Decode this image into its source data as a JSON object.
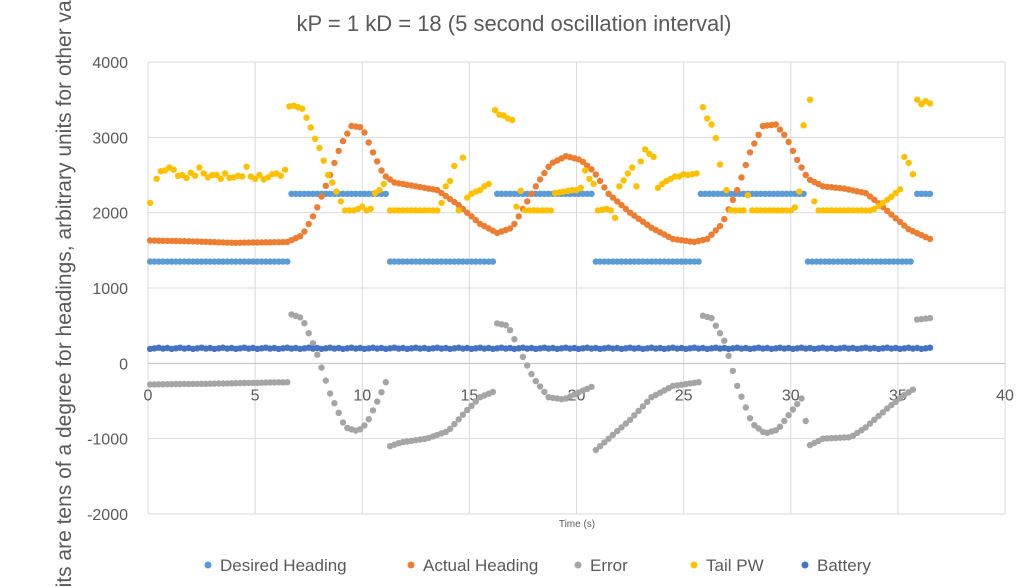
{
  "chart_data": {
    "type": "scatter",
    "title": "kP = 1 kD = 18 (5 second oscillation interval)",
    "xlabel": "Time (s)",
    "ylabel": "Units are tens of  a degree for headings, arbitrary units for other values",
    "xlim": [
      0,
      40
    ],
    "ylim": [
      -2000,
      4000
    ],
    "xticks": [
      0,
      5,
      10,
      15,
      20,
      25,
      30,
      35,
      40
    ],
    "yticks": [
      -2000,
      -1000,
      0,
      1000,
      2000,
      3000,
      4000
    ],
    "grid": true,
    "legend_position": "bottom",
    "x_step": 0.2,
    "x_start": 0.1,
    "series": [
      {
        "name": "Desired Heading",
        "color": "#5b9bd5",
        "segments": [
          {
            "x0": 0.1,
            "x1": 6.5,
            "y0": 1350,
            "y1": 1350
          },
          {
            "x0": 6.7,
            "x1": 11.2,
            "y0": 2250,
            "y1": 2250
          },
          {
            "x0": 11.3,
            "x1": 16.1,
            "y0": 1350,
            "y1": 1350
          },
          {
            "x0": 16.3,
            "x1": 20.8,
            "y0": 2250,
            "y1": 2250
          },
          {
            "x0": 20.9,
            "x1": 25.7,
            "y0": 1350,
            "y1": 1350
          },
          {
            "x0": 25.8,
            "x1": 30.6,
            "y0": 2250,
            "y1": 2250
          },
          {
            "x0": 30.8,
            "x1": 35.7,
            "y0": 1350,
            "y1": 1350
          },
          {
            "x0": 35.9,
            "x1": 36.5,
            "y0": 2250,
            "y1": 2250
          }
        ]
      },
      {
        "name": "Actual Heading",
        "color": "#ed7d31",
        "keypoints": [
          [
            0.1,
            1630
          ],
          [
            2,
            1620
          ],
          [
            4,
            1600
          ],
          [
            6.5,
            1610
          ],
          [
            7.2,
            1700
          ],
          [
            7.8,
            2000
          ],
          [
            8.5,
            2500
          ],
          [
            9,
            2900
          ],
          [
            9.5,
            3150
          ],
          [
            10,
            3130
          ],
          [
            10.5,
            2800
          ],
          [
            11,
            2500
          ],
          [
            11.5,
            2400
          ],
          [
            12.5,
            2350
          ],
          [
            13.5,
            2300
          ],
          [
            14.5,
            2100
          ],
          [
            15.5,
            1850
          ],
          [
            16.3,
            1730
          ],
          [
            17,
            1800
          ],
          [
            17.5,
            2050
          ],
          [
            18.2,
            2400
          ],
          [
            18.8,
            2650
          ],
          [
            19.5,
            2750
          ],
          [
            20.2,
            2700
          ],
          [
            20.8,
            2550
          ],
          [
            21.5,
            2250
          ],
          [
            22.5,
            2000
          ],
          [
            23.5,
            1800
          ],
          [
            24.5,
            1650
          ],
          [
            25.5,
            1610
          ],
          [
            26.1,
            1650
          ],
          [
            26.8,
            1850
          ],
          [
            27.5,
            2300
          ],
          [
            28.1,
            2800
          ],
          [
            28.7,
            3150
          ],
          [
            29.3,
            3170
          ],
          [
            29.8,
            3000
          ],
          [
            30.3,
            2700
          ],
          [
            30.8,
            2450
          ],
          [
            31.5,
            2350
          ],
          [
            32.5,
            2320
          ],
          [
            33.5,
            2260
          ],
          [
            34,
            2150
          ],
          [
            34.8,
            1950
          ],
          [
            35.5,
            1780
          ],
          [
            36.5,
            1650
          ]
        ]
      },
      {
        "name": "Error",
        "color": "#a5a5a5",
        "keypoints": [
          [
            0.1,
            -280
          ],
          [
            3,
            -270
          ],
          [
            6.5,
            -250
          ],
          [
            6.7,
            650
          ],
          [
            7.2,
            600
          ],
          [
            7.8,
            200
          ],
          [
            8.5,
            -400
          ],
          [
            9.2,
            -850
          ],
          [
            9.8,
            -900
          ],
          [
            10.2,
            -800
          ],
          [
            10.8,
            -450
          ],
          [
            11.1,
            -250
          ],
          [
            11.3,
            -1100
          ],
          [
            11.8,
            -1050
          ],
          [
            13,
            -1000
          ],
          [
            14,
            -900
          ],
          [
            14.8,
            -650
          ],
          [
            15.5,
            -450
          ],
          [
            16.1,
            -380
          ],
          [
            16.3,
            530
          ],
          [
            16.8,
            500
          ],
          [
            17.3,
            200
          ],
          [
            18,
            -200
          ],
          [
            18.7,
            -450
          ],
          [
            19.4,
            -480
          ],
          [
            20,
            -400
          ],
          [
            20.8,
            -300
          ],
          [
            20.9,
            -1150
          ],
          [
            21.5,
            -1000
          ],
          [
            22.5,
            -750
          ],
          [
            23.5,
            -450
          ],
          [
            24.5,
            -300
          ],
          [
            25.7,
            -250
          ],
          [
            25.8,
            640
          ],
          [
            26.3,
            600
          ],
          [
            26.9,
            300
          ],
          [
            27.5,
            -300
          ],
          [
            28.2,
            -800
          ],
          [
            28.8,
            -930
          ],
          [
            29.4,
            -880
          ],
          [
            30,
            -650
          ],
          [
            30.6,
            -430
          ],
          [
            30.8,
            -1100
          ],
          [
            31.5,
            -1000
          ],
          [
            32.8,
            -980
          ],
          [
            33.5,
            -850
          ],
          [
            34.5,
            -600
          ],
          [
            35.3,
            -420
          ],
          [
            35.7,
            -350
          ],
          [
            35.9,
            580
          ],
          [
            36.5,
            600
          ]
        ]
      },
      {
        "name": "Tail PW",
        "color": "#ffc000",
        "points": [
          [
            0.1,
            2130
          ],
          [
            0.4,
            2450
          ],
          [
            0.6,
            2550
          ],
          [
            0.8,
            2560
          ],
          [
            1,
            2600
          ],
          [
            1.2,
            2570
          ],
          [
            1.4,
            2490
          ],
          [
            1.6,
            2500
          ],
          [
            1.8,
            2460
          ],
          [
            2,
            2530
          ],
          [
            2.2,
            2490
          ],
          [
            2.4,
            2600
          ],
          [
            2.6,
            2520
          ],
          [
            2.8,
            2470
          ],
          [
            3,
            2500
          ],
          [
            3.2,
            2500
          ],
          [
            3.4,
            2450
          ],
          [
            3.6,
            2520
          ],
          [
            3.8,
            2460
          ],
          [
            4,
            2470
          ],
          [
            4.2,
            2490
          ],
          [
            4.4,
            2480
          ],
          [
            4.6,
            2610
          ],
          [
            4.8,
            2480
          ],
          [
            5,
            2450
          ],
          [
            5.2,
            2500
          ],
          [
            5.4,
            2440
          ],
          [
            5.6,
            2470
          ],
          [
            5.8,
            2510
          ],
          [
            6,
            2520
          ],
          [
            6.2,
            2490
          ],
          [
            6.4,
            2570
          ],
          [
            6.6,
            3410
          ],
          [
            6.8,
            3420
          ],
          [
            7,
            3400
          ],
          [
            7.2,
            3380
          ],
          [
            7.4,
            3260
          ],
          [
            7.6,
            3130
          ],
          [
            7.8,
            2980
          ],
          [
            8,
            2860
          ],
          [
            8.2,
            2690
          ],
          [
            8.4,
            2500
          ],
          [
            8.6,
            2400
          ],
          [
            8.8,
            2280
          ],
          [
            9,
            2150
          ],
          [
            9.2,
            2030
          ],
          [
            9.4,
            2030
          ],
          [
            9.6,
            2030
          ],
          [
            9.8,
            2050
          ],
          [
            10,
            2080
          ],
          [
            10.2,
            2030
          ],
          [
            10.4,
            2050
          ],
          [
            10.6,
            2260
          ],
          [
            10.8,
            2300
          ],
          [
            11,
            2380
          ],
          [
            11.3,
            2030
          ],
          [
            11.5,
            2030
          ],
          [
            11.7,
            2030
          ],
          [
            11.9,
            2030
          ],
          [
            12.1,
            2030
          ],
          [
            12.3,
            2030
          ],
          [
            12.5,
            2030
          ],
          [
            12.7,
            2030
          ],
          [
            12.9,
            2030
          ],
          [
            13.1,
            2030
          ],
          [
            13.3,
            2030
          ],
          [
            13.5,
            2030
          ],
          [
            13.7,
            2130
          ],
          [
            13.9,
            2350
          ],
          [
            14.1,
            2420
          ],
          [
            14.3,
            2620
          ],
          [
            14.5,
            2030
          ],
          [
            14.7,
            2730
          ],
          [
            14.9,
            2200
          ],
          [
            15.1,
            2250
          ],
          [
            15.3,
            2280
          ],
          [
            15.5,
            2300
          ],
          [
            15.7,
            2350
          ],
          [
            15.9,
            2380
          ],
          [
            16.2,
            3360
          ],
          [
            16.4,
            3300
          ],
          [
            16.6,
            3290
          ],
          [
            16.8,
            3250
          ],
          [
            17,
            3230
          ],
          [
            17.2,
            2080
          ],
          [
            17.4,
            2290
          ],
          [
            17.6,
            2030
          ],
          [
            17.8,
            2030
          ],
          [
            18,
            2030
          ],
          [
            18.2,
            2030
          ],
          [
            18.4,
            2030
          ],
          [
            18.6,
            2030
          ],
          [
            18.8,
            2030
          ],
          [
            19,
            2260
          ],
          [
            19.2,
            2270
          ],
          [
            19.4,
            2280
          ],
          [
            19.6,
            2290
          ],
          [
            19.8,
            2300
          ],
          [
            20,
            2300
          ],
          [
            20.2,
            2330
          ],
          [
            20.4,
            2560
          ],
          [
            20.6,
            2450
          ],
          [
            20.8,
            2380
          ],
          [
            21,
            2030
          ],
          [
            21.2,
            2040
          ],
          [
            21.4,
            2050
          ],
          [
            21.6,
            2030
          ],
          [
            21.8,
            1930
          ],
          [
            22,
            2350
          ],
          [
            22.2,
            2430
          ],
          [
            22.4,
            2520
          ],
          [
            22.6,
            2600
          ],
          [
            22.8,
            2350
          ],
          [
            23,
            2680
          ],
          [
            23.2,
            2840
          ],
          [
            23.4,
            2780
          ],
          [
            23.6,
            2740
          ],
          [
            23.8,
            2330
          ],
          [
            24,
            2380
          ],
          [
            24.2,
            2420
          ],
          [
            24.4,
            2450
          ],
          [
            24.6,
            2480
          ],
          [
            24.8,
            2480
          ],
          [
            25,
            2510
          ],
          [
            25.2,
            2500
          ],
          [
            25.4,
            2510
          ],
          [
            25.6,
            2520
          ],
          [
            25.9,
            3400
          ],
          [
            26.1,
            3250
          ],
          [
            26.3,
            3170
          ],
          [
            26.5,
            2990
          ],
          [
            26.7,
            2640
          ],
          [
            27,
            2300
          ],
          [
            27.2,
            2030
          ],
          [
            27.4,
            2030
          ],
          [
            27.6,
            2030
          ],
          [
            27.8,
            2030
          ],
          [
            28,
            2230
          ],
          [
            28.2,
            2030
          ],
          [
            28.4,
            2030
          ],
          [
            28.6,
            2030
          ],
          [
            28.8,
            2030
          ],
          [
            29,
            2030
          ],
          [
            29.2,
            2030
          ],
          [
            29.4,
            2030
          ],
          [
            29.6,
            2030
          ],
          [
            29.8,
            2030
          ],
          [
            30,
            2030
          ],
          [
            30.2,
            2070
          ],
          [
            30.4,
            2280
          ],
          [
            30.6,
            3160
          ],
          [
            30.9,
            3500
          ],
          [
            31.1,
            2150
          ],
          [
            31.3,
            2030
          ],
          [
            31.5,
            2030
          ],
          [
            31.7,
            2030
          ],
          [
            31.9,
            2030
          ],
          [
            32.1,
            2030
          ],
          [
            32.3,
            2030
          ],
          [
            32.5,
            2030
          ],
          [
            32.7,
            2030
          ],
          [
            32.9,
            2030
          ],
          [
            33.1,
            2030
          ],
          [
            33.3,
            2030
          ],
          [
            33.5,
            2030
          ],
          [
            33.7,
            2030
          ],
          [
            33.9,
            2050
          ],
          [
            34.1,
            2090
          ],
          [
            34.3,
            2130
          ],
          [
            34.5,
            2170
          ],
          [
            34.7,
            2210
          ],
          [
            34.9,
            2260
          ],
          [
            35.1,
            2310
          ],
          [
            35.3,
            2740
          ],
          [
            35.5,
            2660
          ],
          [
            35.7,
            2510
          ],
          [
            35.9,
            3500
          ],
          [
            36.1,
            3440
          ],
          [
            36.3,
            3480
          ],
          [
            36.5,
            3450
          ]
        ]
      },
      {
        "name": "Battery",
        "color": "#4472c4",
        "base": 200,
        "x1": 36.5
      }
    ]
  }
}
